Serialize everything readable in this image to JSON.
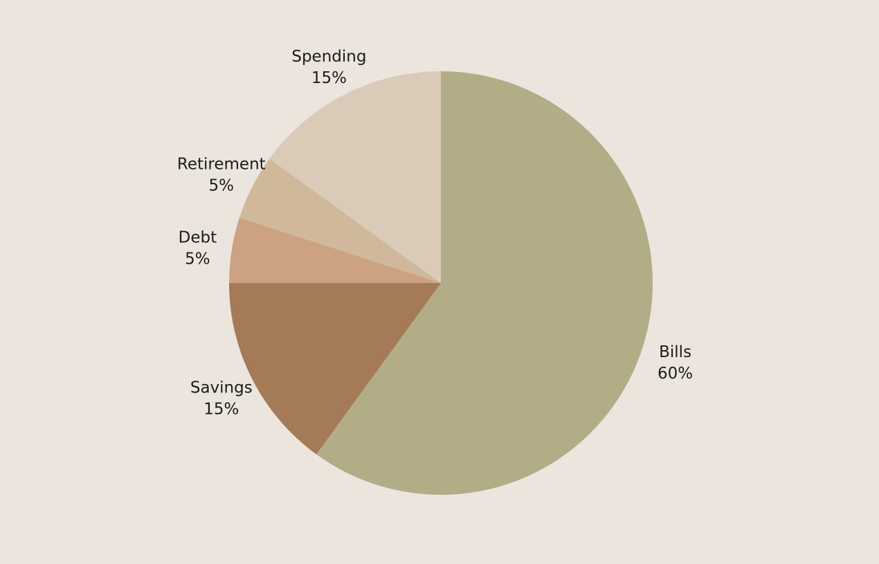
{
  "chart_data": {
    "type": "pie",
    "background_color": "#ebe5de",
    "start_angle_deg": 0,
    "direction": "clockwise",
    "slices": [
      {
        "label": "Bills",
        "value": 60,
        "value_label": "60%",
        "color": "#b2ac87"
      },
      {
        "label": "Savings",
        "value": 15,
        "value_label": "15%",
        "color": "#a57a57"
      },
      {
        "label": "Debt",
        "value": 5,
        "value_label": "5%",
        "color": "#cda283"
      },
      {
        "label": "Retirement",
        "value": 5,
        "value_label": "5%",
        "color": "#d0b99a"
      },
      {
        "label": "Spending",
        "value": 15,
        "value_label": "15%",
        "color": "#dacbb9"
      }
    ]
  }
}
